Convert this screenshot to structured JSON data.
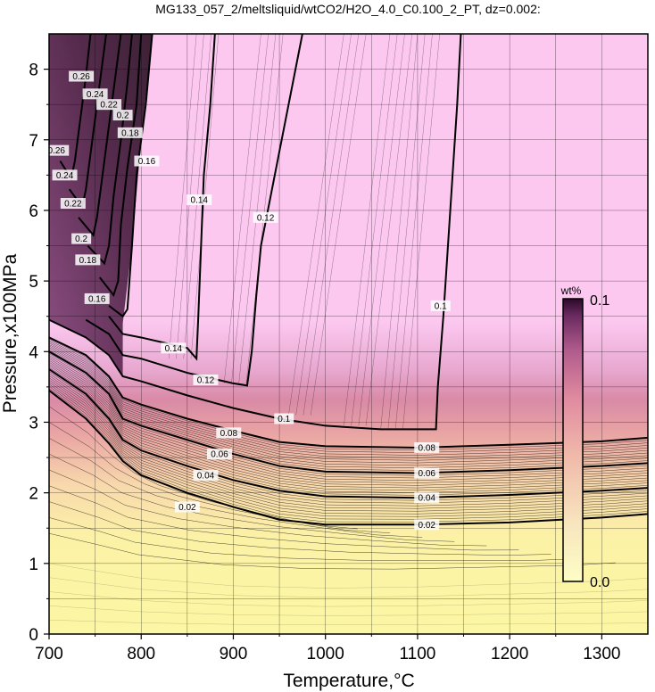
{
  "chart_data": {
    "type": "contour",
    "title": "MG133_057_2/meltsliquid/wtCO2/H2O_4.0_C0.100_2_PT, dz=0.002:",
    "xlabel": "Temperature,°C",
    "ylabel": "Pressure,x100MPa",
    "xlim": [
      700,
      1350
    ],
    "ylim": [
      0,
      8.5
    ],
    "xticks": [
      "700",
      "800",
      "900",
      "1000",
      "1100",
      "1200",
      "1300"
    ],
    "yticks": [
      "0",
      "1",
      "2",
      "3",
      "4",
      "5",
      "6",
      "7",
      "8"
    ],
    "grid": true,
    "colorbar": {
      "unit": "wt%",
      "min_label": "0.0",
      "max_label": "0.1",
      "colors": [
        "#fefdc6",
        "#f8e0b4",
        "#f0b4a8",
        "#e08aa0",
        "#b05a8c",
        "#6a2a60",
        "#2a0a2a"
      ]
    },
    "background_colors": {
      "low": "#fcf7a4",
      "mid": "#e0889c",
      "high": "#fcc8f0"
    },
    "contours": [
      {
        "level": "0.02",
        "points": [
          [
            700,
            3.45
          ],
          [
            740,
            3.05
          ],
          [
            765,
            2.7
          ],
          [
            780,
            2.45
          ],
          [
            800,
            2.25
          ],
          [
            850,
            2.0
          ],
          [
            900,
            1.8
          ],
          [
            950,
            1.62
          ],
          [
            1000,
            1.55
          ],
          [
            1100,
            1.55
          ],
          [
            1200,
            1.58
          ],
          [
            1300,
            1.65
          ],
          [
            1350,
            1.7
          ]
        ],
        "labels": [
          [
            850,
            1.8
          ],
          [
            1110,
            1.55
          ]
        ]
      },
      {
        "level": "0.04",
        "points": [
          [
            700,
            3.75
          ],
          [
            740,
            3.4
          ],
          [
            765,
            3.05
          ],
          [
            780,
            2.75
          ],
          [
            800,
            2.6
          ],
          [
            850,
            2.38
          ],
          [
            900,
            2.18
          ],
          [
            950,
            2.03
          ],
          [
            1000,
            1.95
          ],
          [
            1100,
            1.93
          ],
          [
            1200,
            1.97
          ],
          [
            1300,
            2.03
          ],
          [
            1350,
            2.07
          ]
        ],
        "labels": [
          [
            870,
            2.25
          ],
          [
            1110,
            1.93
          ]
        ]
      },
      {
        "level": "0.06",
        "points": [
          [
            700,
            4.0
          ],
          [
            740,
            3.7
          ],
          [
            765,
            3.4
          ],
          [
            780,
            3.05
          ],
          [
            800,
            2.95
          ],
          [
            850,
            2.75
          ],
          [
            900,
            2.55
          ],
          [
            950,
            2.38
          ],
          [
            1000,
            2.3
          ],
          [
            1100,
            2.28
          ],
          [
            1200,
            2.32
          ],
          [
            1300,
            2.38
          ],
          [
            1350,
            2.42
          ]
        ],
        "labels": [
          [
            885,
            2.55
          ],
          [
            1110,
            2.28
          ]
        ]
      },
      {
        "level": "0.08",
        "points": [
          [
            700,
            4.2
          ],
          [
            740,
            3.95
          ],
          [
            765,
            3.65
          ],
          [
            780,
            3.35
          ],
          [
            800,
            3.25
          ],
          [
            850,
            3.05
          ],
          [
            900,
            2.88
          ],
          [
            950,
            2.72
          ],
          [
            1000,
            2.66
          ],
          [
            1100,
            2.64
          ],
          [
            1200,
            2.68
          ],
          [
            1300,
            2.73
          ],
          [
            1350,
            2.78
          ]
        ],
        "labels": [
          [
            895,
            2.85
          ],
          [
            1110,
            2.64
          ]
        ]
      },
      {
        "level": "0.1",
        "points": [
          [
            700,
            4.45
          ],
          [
            740,
            4.2
          ],
          [
            765,
            3.95
          ],
          [
            780,
            3.65
          ],
          [
            800,
            3.58
          ],
          [
            850,
            3.38
          ],
          [
            900,
            3.2
          ],
          [
            950,
            3.05
          ],
          [
            1000,
            2.95
          ],
          [
            1060,
            2.9
          ],
          [
            1120,
            2.9
          ],
          [
            1122,
            3.5
          ],
          [
            1128,
            4.5
          ],
          [
            1133,
            5.5
          ],
          [
            1138,
            6.5
          ],
          [
            1143,
            7.5
          ],
          [
            1147,
            8.5
          ]
        ],
        "labels": [
          [
            955,
            3.05
          ],
          [
            1125,
            4.65
          ]
        ]
      },
      {
        "level": "0.12",
        "points": [
          [
            740,
            4.45
          ],
          [
            765,
            4.25
          ],
          [
            780,
            3.95
          ],
          [
            800,
            3.9
          ],
          [
            850,
            3.7
          ],
          [
            900,
            3.55
          ],
          [
            915,
            3.52
          ],
          [
            920,
            4.0
          ],
          [
            925,
            4.8
          ],
          [
            930,
            5.5
          ],
          [
            945,
            6.5
          ],
          [
            960,
            7.5
          ],
          [
            975,
            8.5
          ]
        ],
        "labels": [
          [
            870,
            3.6
          ],
          [
            935,
            5.9
          ]
        ]
      },
      {
        "level": "0.14",
        "points": [
          [
            765,
            4.5
          ],
          [
            780,
            4.25
          ],
          [
            800,
            4.2
          ],
          [
            850,
            4.05
          ],
          [
            860,
            3.9
          ],
          [
            862,
            4.5
          ],
          [
            865,
            5.5
          ],
          [
            868,
            6.5
          ],
          [
            875,
            7.5
          ],
          [
            880,
            8.5
          ]
        ],
        "labels": [
          [
            835,
            4.05
          ],
          [
            863,
            6.15
          ]
        ]
      },
      {
        "level": "0.16",
        "points": [
          [
            765,
            4.65
          ],
          [
            780,
            4.5
          ],
          [
            785,
            4.6
          ],
          [
            790,
            5.5
          ],
          [
            795,
            6.5
          ],
          [
            805,
            7.5
          ],
          [
            812,
            8.5
          ]
        ],
        "labels": [
          [
            752,
            4.75
          ],
          [
            806,
            6.7
          ]
        ]
      },
      {
        "level": "0.18",
        "points": [
          [
            755,
            5.05
          ],
          [
            770,
            4.8
          ],
          [
            775,
            5.0
          ],
          [
            778,
            5.8
          ],
          [
            785,
            6.6
          ],
          [
            795,
            7.5
          ],
          [
            800,
            8.5
          ]
        ],
        "labels": [
          [
            742,
            5.3
          ],
          [
            788,
            7.1
          ]
        ]
      },
      {
        "level": "0.2",
        "points": [
          [
            742,
            5.5
          ],
          [
            760,
            5.25
          ],
          [
            765,
            5.5
          ],
          [
            770,
            6.2
          ],
          [
            778,
            7.0
          ],
          [
            785,
            7.8
          ],
          [
            790,
            8.5
          ]
        ],
        "labels": [
          [
            735,
            5.6
          ],
          [
            780,
            7.35
          ]
        ]
      },
      {
        "level": "0.22",
        "points": [
          [
            732,
            5.9
          ],
          [
            748,
            5.65
          ],
          [
            752,
            5.9
          ],
          [
            758,
            6.5
          ],
          [
            765,
            7.2
          ],
          [
            772,
            7.9
          ],
          [
            778,
            8.5
          ]
        ],
        "labels": [
          [
            726,
            6.1
          ],
          [
            765,
            7.5
          ]
        ]
      },
      {
        "level": "0.24",
        "points": [
          [
            722,
            6.3
          ],
          [
            736,
            6.05
          ],
          [
            740,
            6.3
          ],
          [
            746,
            6.9
          ],
          [
            752,
            7.5
          ],
          [
            758,
            8.1
          ],
          [
            762,
            8.5
          ]
        ],
        "labels": [
          [
            717,
            6.5
          ],
          [
            750,
            7.65
          ]
        ]
      },
      {
        "level": "0.26",
        "points": [
          [
            712,
            6.7
          ],
          [
            724,
            6.45
          ],
          [
            728,
            6.7
          ],
          [
            734,
            7.3
          ],
          [
            740,
            7.9
          ],
          [
            745,
            8.5
          ]
        ],
        "labels": [
          [
            708,
            6.85
          ],
          [
            735,
            7.9
          ]
        ]
      }
    ]
  }
}
